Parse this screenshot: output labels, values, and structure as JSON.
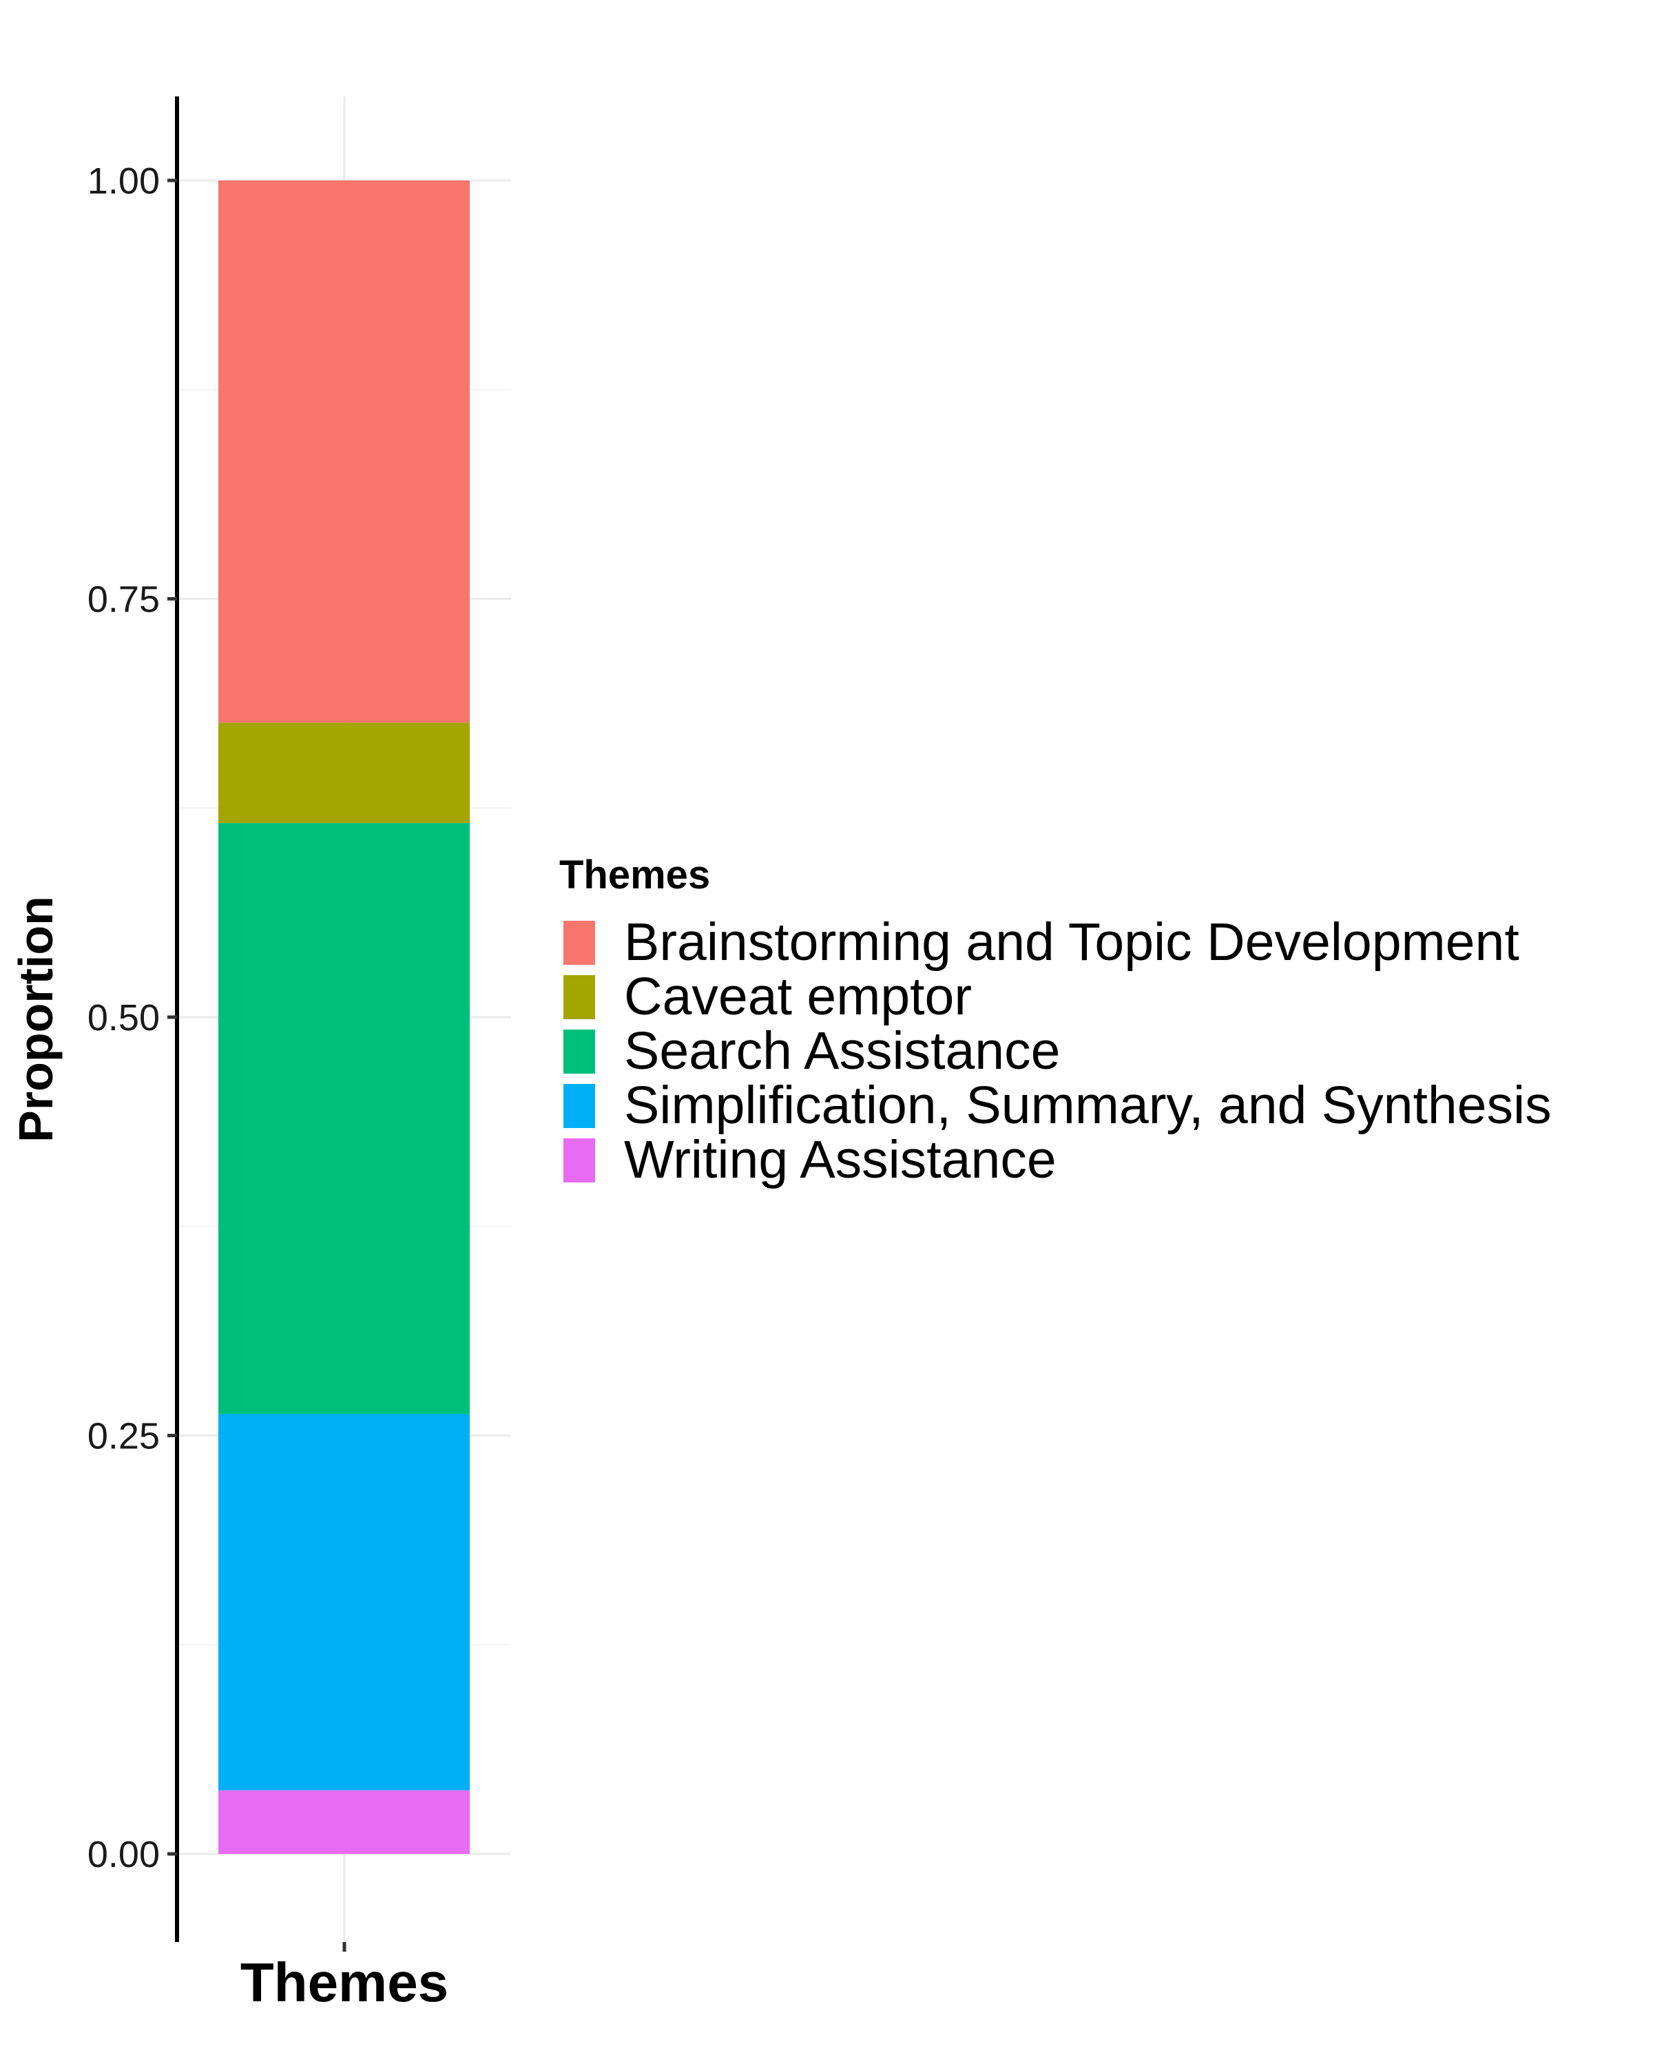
{
  "chart_data": {
    "type": "bar",
    "stacked": true,
    "orientation": "vertical",
    "categories": [
      ""
    ],
    "xlabel": "Themes",
    "ylabel": "Proportion",
    "ylim": [
      -0.05,
      1.05
    ],
    "yticks": [
      {
        "value": 0.0,
        "label": "0.00"
      },
      {
        "value": 0.25,
        "label": "0.25"
      },
      {
        "value": 0.5,
        "label": "0.50"
      },
      {
        "value": 0.75,
        "label": "0.75"
      },
      {
        "value": 1.0,
        "label": "1.00"
      }
    ],
    "grid": true,
    "legend": {
      "title": "Themes",
      "placement": "right"
    },
    "series": [
      {
        "name": "Brainstorming and Topic Development",
        "values": [
          0.324
        ],
        "color": "#F8766D"
      },
      {
        "name": "Caveat emptor",
        "values": [
          0.06
        ],
        "color": "#A3A500"
      },
      {
        "name": "Search Assistance",
        "values": [
          0.353
        ],
        "color": "#00BF7D"
      },
      {
        "name": "Simplification, Summary, and Synthesis",
        "values": [
          0.225
        ],
        "color": "#00B0F6"
      },
      {
        "name": "Writing Assistance",
        "values": [
          0.038
        ],
        "color": "#E76BF3"
      }
    ]
  }
}
